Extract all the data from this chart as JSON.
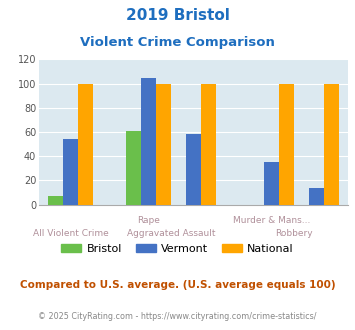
{
  "title_line1": "2019 Bristol",
  "title_line2": "Violent Crime Comparison",
  "bristol": [
    7,
    61,
    null,
    null,
    null
  ],
  "vermont": [
    54,
    105,
    58,
    35,
    14
  ],
  "national": [
    100,
    100,
    100,
    100,
    100
  ],
  "x_centers": [
    0.0,
    1.05,
    1.65,
    2.7,
    3.3
  ],
  "bar_color_bristol": "#6abf4b",
  "bar_color_vermont": "#4472c4",
  "bar_color_national": "#ffa500",
  "bar_width": 0.2,
  "ylim": [
    0,
    120
  ],
  "yticks": [
    0,
    20,
    40,
    60,
    80,
    100,
    120
  ],
  "bg_color": "#dce9f0",
  "title_color": "#1e6ebf",
  "top_xlabel_color": "#aaaaaa",
  "bot_xlabel_color": "#aaaaaa",
  "footer_text": "Compared to U.S. average. (U.S. average equals 100)",
  "footer_color": "#c05000",
  "credit_text": "© 2025 CityRating.com - https://www.cityrating.com/crime-statistics/",
  "credit_color": "#888888"
}
